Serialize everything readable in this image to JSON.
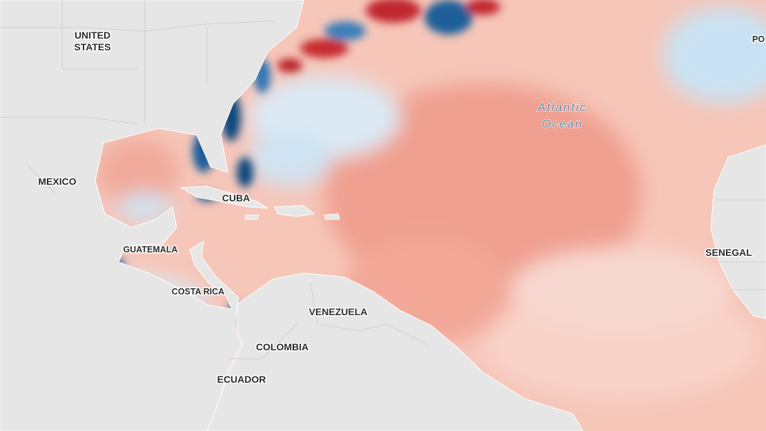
{
  "labels": [
    {
      "lines": [
        "UNITED",
        "STATES"
      ]
    },
    {
      "lines": [
        "MEXICO"
      ]
    },
    {
      "lines": [
        "CUBA"
      ]
    },
    {
      "lines": [
        "GUATEMALA"
      ]
    },
    {
      "lines": [
        "COSTA RICA"
      ]
    },
    {
      "lines": [
        "VENEZUELA"
      ]
    },
    {
      "lines": [
        "COLOMBIA"
      ]
    },
    {
      "lines": [
        "ECUADOR"
      ]
    },
    {
      "lines": [
        "SENEGAL"
      ]
    },
    {
      "lines": [
        "PO"
      ]
    },
    {
      "lines": [
        "Atlantic",
        "Ocean"
      ]
    }
  ]
}
